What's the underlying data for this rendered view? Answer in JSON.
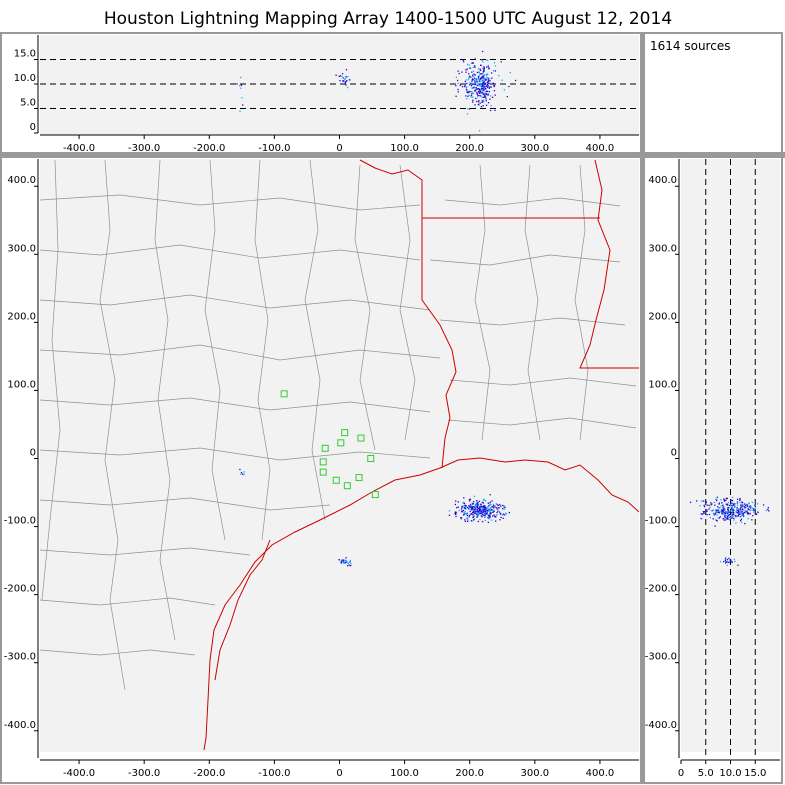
{
  "header": {
    "title": "Houston Lightning Mapping Array   1400-1500 UTC  August 12, 2014"
  },
  "info": {
    "source_count": "1614 sources"
  },
  "colors": {
    "background": "#f2f2f2",
    "frame": "#999999",
    "county_lines": "#909090",
    "state_lines": "#cc0000",
    "coastline": "#cc0000",
    "sensors": "#33cc33",
    "sources_early": "#3300cc",
    "sources_late": "#00b0ff"
  },
  "chart_data": [
    {
      "type": "scatter",
      "name": "altitude-vs-east",
      "xlim": [
        -460,
        460
      ],
      "ylim": [
        0,
        20
      ],
      "x_ticks": [
        "-400.0",
        "-300.0",
        "-200.0",
        "-100.0",
        "0",
        "100.0",
        "200.0",
        "300.0",
        "400.0"
      ],
      "x_tick_values": [
        -400,
        -300,
        -200,
        -100,
        0,
        100,
        200,
        300,
        400
      ],
      "y_ticks": [
        "0",
        "5.0",
        "10.0",
        "15.0"
      ],
      "y_tick_values": [
        0,
        5,
        10,
        15
      ],
      "reference_lines_y": [
        5,
        10,
        15
      ],
      "clusters": [
        {
          "x": 215,
          "y": 10,
          "sx": 14,
          "sy": 2.2,
          "n": 330
        },
        {
          "x": 7,
          "y": 11,
          "sx": 4,
          "sy": 1.0,
          "n": 25
        },
        {
          "x": -152,
          "y": 8,
          "sx": 2,
          "sy": 2.5,
          "n": 8
        }
      ]
    },
    {
      "type": "scatter",
      "name": "plan-view",
      "xlim": [
        -460,
        460
      ],
      "ylim": [
        -440,
        440
      ],
      "x_ticks": [
        "-400.0",
        "-300.0",
        "-200.0",
        "-100.0",
        "0",
        "100.0",
        "200.0",
        "300.0",
        "400.0"
      ],
      "x_tick_values": [
        -400,
        -300,
        -200,
        -100,
        0,
        100,
        200,
        300,
        400
      ],
      "y_ticks": [
        "400.0",
        "300.0",
        "200.0",
        "100.0",
        "0",
        "-100.0",
        "-200.0",
        "-300.0",
        "-400.0"
      ],
      "y_tick_values": [
        400,
        300,
        200,
        100,
        0,
        -100,
        -200,
        -300,
        -400
      ],
      "clusters": [
        {
          "x": 215,
          "y": -75,
          "sx": 18,
          "sy": 7,
          "n": 360
        },
        {
          "x": 7,
          "y": -150,
          "sx": 6,
          "sy": 3,
          "n": 30
        },
        {
          "x": -150,
          "y": -20,
          "sx": 2,
          "sy": 2,
          "n": 6
        }
      ],
      "stations": [
        {
          "x": -85,
          "y": 95
        },
        {
          "x": -22,
          "y": 15
        },
        {
          "x": -25,
          "y": -5
        },
        {
          "x": -25,
          "y": -20
        },
        {
          "x": -5,
          "y": -32
        },
        {
          "x": 2,
          "y": 23
        },
        {
          "x": 8,
          "y": 38
        },
        {
          "x": 12,
          "y": -40
        },
        {
          "x": 30,
          "y": -28
        },
        {
          "x": 33,
          "y": 30
        },
        {
          "x": 48,
          "y": 0
        },
        {
          "x": 55,
          "y": -53
        }
      ]
    },
    {
      "type": "scatter",
      "name": "north-vs-altitude",
      "xlim": [
        0,
        20
      ],
      "ylim": [
        -440,
        440
      ],
      "x_ticks": [
        "0",
        "5.0",
        "10.0",
        "15.0"
      ],
      "x_tick_values": [
        0,
        5,
        10,
        15
      ],
      "y_ticks": [
        "400.0",
        "300.0",
        "200.0",
        "100.0",
        "0",
        "-100.0",
        "-200.0",
        "-300.0",
        "-400.0"
      ],
      "y_tick_values": [
        400,
        300,
        200,
        100,
        0,
        -100,
        -200,
        -300,
        -400
      ],
      "reference_lines_x": [
        5,
        10,
        15
      ],
      "clusters": [
        {
          "x": 10,
          "y": -75,
          "sx": 2.8,
          "sy": 8,
          "n": 320
        },
        {
          "x": 10,
          "y": -150,
          "sx": 1.0,
          "sy": 3,
          "n": 25
        }
      ]
    }
  ]
}
